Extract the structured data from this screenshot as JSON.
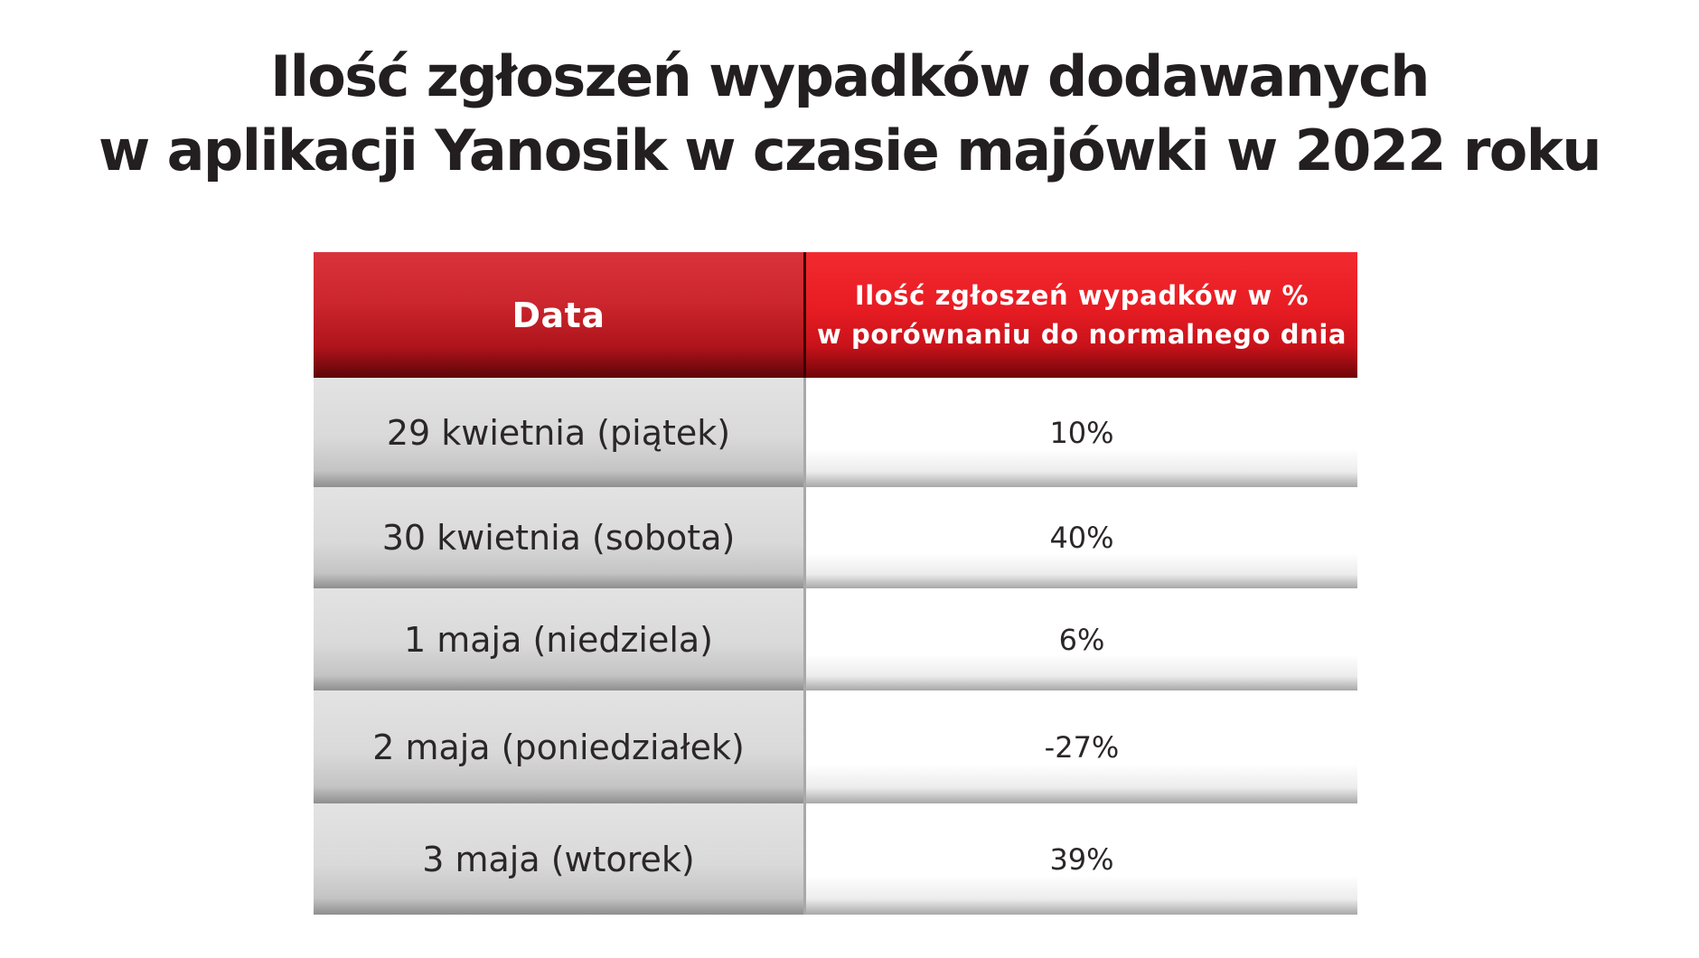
{
  "title": {
    "line1": "Ilość zgłoszeń wypadków dodawanych",
    "line2": "w aplikacji Yanosik w czasie majówki w 2022 roku"
  },
  "chart_data": {
    "type": "table",
    "title": "Ilość zgłoszeń wypadków dodawanych w aplikacji Yanosik w czasie majówki w 2022 roku",
    "headers": {
      "date": "Data",
      "value_line1": "Ilość zgłoszeń wypadków w %",
      "value_line2": "w porównaniu do normalnego dnia"
    },
    "rows": [
      {
        "date": "29 kwietnia (piątek)",
        "value": "10%"
      },
      {
        "date": "30 kwietnia (sobota)",
        "value": "40%"
      },
      {
        "date": "1 maja (niedziela)",
        "value": "6%"
      },
      {
        "date": "2 maja (poniedziałek)",
        "value": "-27%"
      },
      {
        "date": "3 maja (wtorek)",
        "value": "39%"
      }
    ],
    "values": [
      10,
      40,
      6,
      -27,
      39
    ]
  },
  "colors": {
    "header_date": "#cc262e",
    "header_value": "#e81c23",
    "date_cell": "#d9d9d9",
    "value_cell": "#ffffff",
    "text": "#231f20"
  }
}
